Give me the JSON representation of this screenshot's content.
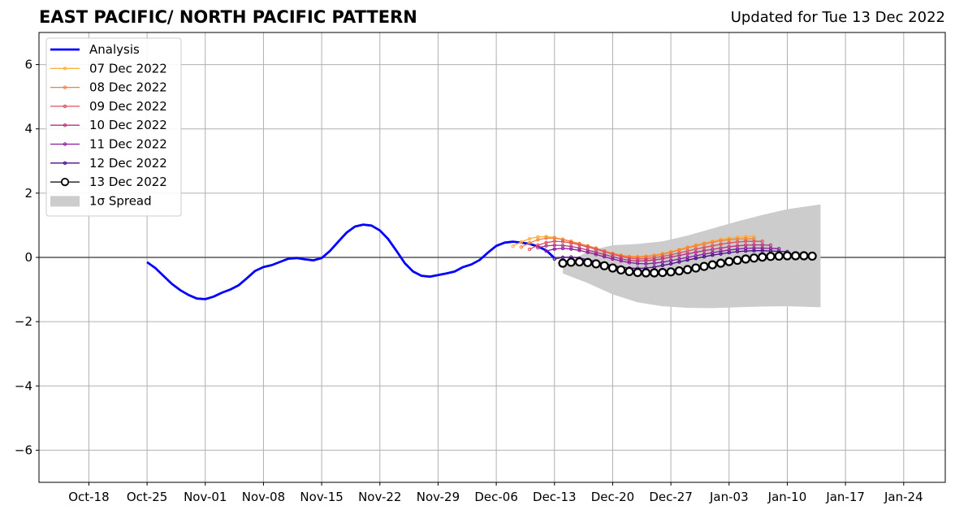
{
  "title": "EAST PACIFIC/ NORTH PACIFIC PATTERN",
  "updated": "Updated for Tue 13 Dec 2022",
  "chart_data": {
    "type": "line",
    "x_axis": {
      "unit": "days",
      "range": [
        "2022-10-12",
        "2023-01-29"
      ],
      "tick_dates": [
        "2022-10-18",
        "2022-10-25",
        "2022-11-01",
        "2022-11-08",
        "2022-11-15",
        "2022-11-22",
        "2022-11-29",
        "2022-12-06",
        "2022-12-13",
        "2022-12-20",
        "2022-12-27",
        "2023-01-03",
        "2023-01-10",
        "2023-01-17",
        "2023-01-24"
      ],
      "tick_labels": [
        "Oct-18",
        "Oct-25",
        "Nov-01",
        "Nov-08",
        "Nov-15",
        "Nov-22",
        "Nov-29",
        "Dec-06",
        "Dec-13",
        "Dec-20",
        "Dec-27",
        "Jan-03",
        "Jan-10",
        "Jan-17",
        "Jan-24"
      ]
    },
    "y_axis": {
      "range": [
        -7,
        7
      ],
      "ticks": [
        -6,
        -4,
        -2,
        0,
        2,
        4,
        6
      ],
      "tick_labels": [
        "−6",
        "−4",
        "−2",
        "0",
        "2",
        "4",
        "6"
      ]
    },
    "grid": true,
    "legend_position": "top-left",
    "spread": {
      "name": "1σ Spread",
      "color": "#cccccc",
      "upper": [
        {
          "x": "2022-12-14",
          "y": -0.3
        },
        {
          "x": "2022-12-17",
          "y": 0.2
        },
        {
          "x": "2022-12-20",
          "y": 0.38
        },
        {
          "x": "2022-12-23",
          "y": 0.42
        },
        {
          "x": "2022-12-26",
          "y": 0.5
        },
        {
          "x": "2022-12-29",
          "y": 0.68
        },
        {
          "x": "2023-01-01",
          "y": 0.9
        },
        {
          "x": "2023-01-04",
          "y": 1.12
        },
        {
          "x": "2023-01-07",
          "y": 1.32
        },
        {
          "x": "2023-01-10",
          "y": 1.5
        },
        {
          "x": "2023-01-14",
          "y": 1.65
        }
      ],
      "lower": [
        {
          "x": "2022-12-14",
          "y": -0.5
        },
        {
          "x": "2022-12-17",
          "y": -0.8
        },
        {
          "x": "2022-12-20",
          "y": -1.15
        },
        {
          "x": "2022-12-23",
          "y": -1.4
        },
        {
          "x": "2022-12-26",
          "y": -1.52
        },
        {
          "x": "2022-12-29",
          "y": -1.57
        },
        {
          "x": "2023-01-01",
          "y": -1.58
        },
        {
          "x": "2023-01-04",
          "y": -1.55
        },
        {
          "x": "2023-01-07",
          "y": -1.53
        },
        {
          "x": "2023-01-10",
          "y": -1.52
        },
        {
          "x": "2023-01-14",
          "y": -1.55
        }
      ]
    },
    "analysis": {
      "name": "Analysis",
      "color": "#0000ff",
      "points": [
        {
          "x": "2022-10-25",
          "y": -0.15
        },
        {
          "x": "2022-10-26",
          "y": -0.33
        },
        {
          "x": "2022-10-27",
          "y": -0.58
        },
        {
          "x": "2022-10-28",
          "y": -0.83
        },
        {
          "x": "2022-10-29",
          "y": -1.02
        },
        {
          "x": "2022-10-30",
          "y": -1.17
        },
        {
          "x": "2022-10-31",
          "y": -1.28
        },
        {
          "x": "2022-11-01",
          "y": -1.3
        },
        {
          "x": "2022-11-02",
          "y": -1.22
        },
        {
          "x": "2022-11-03",
          "y": -1.1
        },
        {
          "x": "2022-11-04",
          "y": -1.0
        },
        {
          "x": "2022-11-05",
          "y": -0.87
        },
        {
          "x": "2022-11-06",
          "y": -0.65
        },
        {
          "x": "2022-11-07",
          "y": -0.42
        },
        {
          "x": "2022-11-08",
          "y": -0.3
        },
        {
          "x": "2022-11-09",
          "y": -0.24
        },
        {
          "x": "2022-11-10",
          "y": -0.14
        },
        {
          "x": "2022-11-11",
          "y": -0.04
        },
        {
          "x": "2022-11-12",
          "y": -0.02
        },
        {
          "x": "2022-11-13",
          "y": -0.06
        },
        {
          "x": "2022-11-14",
          "y": -0.09
        },
        {
          "x": "2022-11-15",
          "y": -0.02
        },
        {
          "x": "2022-11-16",
          "y": 0.2
        },
        {
          "x": "2022-11-17",
          "y": 0.49
        },
        {
          "x": "2022-11-18",
          "y": 0.77
        },
        {
          "x": "2022-11-19",
          "y": 0.96
        },
        {
          "x": "2022-11-20",
          "y": 1.02
        },
        {
          "x": "2022-11-21",
          "y": 0.99
        },
        {
          "x": "2022-11-22",
          "y": 0.84
        },
        {
          "x": "2022-11-23",
          "y": 0.57
        },
        {
          "x": "2022-11-24",
          "y": 0.2
        },
        {
          "x": "2022-11-25",
          "y": -0.18
        },
        {
          "x": "2022-11-26",
          "y": -0.44
        },
        {
          "x": "2022-11-27",
          "y": -0.57
        },
        {
          "x": "2022-11-28",
          "y": -0.6
        },
        {
          "x": "2022-11-29",
          "y": -0.55
        },
        {
          "x": "2022-11-30",
          "y": -0.5
        },
        {
          "x": "2022-12-01",
          "y": -0.44
        },
        {
          "x": "2022-12-02",
          "y": -0.3
        },
        {
          "x": "2022-12-03",
          "y": -0.22
        },
        {
          "x": "2022-12-04",
          "y": -0.08
        },
        {
          "x": "2022-12-05",
          "y": 0.15
        },
        {
          "x": "2022-12-06",
          "y": 0.36
        },
        {
          "x": "2022-12-07",
          "y": 0.46
        },
        {
          "x": "2022-12-08",
          "y": 0.49
        },
        {
          "x": "2022-12-09",
          "y": 0.46
        },
        {
          "x": "2022-12-10",
          "y": 0.42
        },
        {
          "x": "2022-12-11",
          "y": 0.34
        },
        {
          "x": "2022-12-12",
          "y": 0.22
        },
        {
          "x": "2022-12-13",
          "y": -0.02
        }
      ]
    },
    "series": [
      {
        "name": "07 Dec 2022",
        "color": "#fbb13c",
        "start": "2022-12-08",
        "values": [
          0.35,
          0.48,
          0.58,
          0.64,
          0.65,
          0.62,
          0.56,
          0.48,
          0.42,
          0.35,
          0.28,
          0.2,
          0.12,
          0.07,
          0.04,
          0.03,
          0.05,
          0.07,
          0.12,
          0.18,
          0.25,
          0.32,
          0.39,
          0.45,
          0.51,
          0.56,
          0.6,
          0.63,
          0.65,
          0.65
        ]
      },
      {
        "name": "08 Dec 2022",
        "color": "#f37f3a",
        "start": "2022-12-09",
        "values": [
          0.32,
          0.45,
          0.55,
          0.6,
          0.6,
          0.56,
          0.5,
          0.43,
          0.36,
          0.29,
          0.2,
          0.12,
          0.06,
          0.02,
          0.01,
          0.02,
          0.05,
          0.1,
          0.16,
          0.23,
          0.3,
          0.36,
          0.42,
          0.47,
          0.52,
          0.55,
          0.57,
          0.58,
          0.58
        ]
      },
      {
        "name": "09 Dec 2022",
        "color": "#dc5060",
        "start": "2022-12-10",
        "values": [
          0.25,
          0.38,
          0.46,
          0.5,
          0.49,
          0.45,
          0.39,
          0.32,
          0.25,
          0.18,
          0.1,
          0.03,
          -0.02,
          -0.04,
          -0.04,
          -0.01,
          0.03,
          0.08,
          0.14,
          0.2,
          0.26,
          0.31,
          0.36,
          0.41,
          0.45,
          0.48,
          0.5,
          0.5,
          0.5
        ]
      },
      {
        "name": "10 Dec 2022",
        "color": "#b5327e",
        "start": "2022-12-11",
        "values": [
          0.3,
          0.36,
          0.38,
          0.37,
          0.34,
          0.29,
          0.23,
          0.16,
          0.09,
          0.02,
          -0.04,
          -0.09,
          -0.11,
          -0.1,
          -0.08,
          -0.04,
          0.01,
          0.06,
          0.11,
          0.16,
          0.21,
          0.25,
          0.29,
          0.33,
          0.36,
          0.38,
          0.39,
          0.39,
          0.38
        ]
      },
      {
        "name": "11 Dec 2022",
        "color": "#8a1a9b",
        "start": "2022-12-12",
        "values": [
          0.2,
          0.26,
          0.28,
          0.26,
          0.22,
          0.16,
          0.09,
          0.02,
          -0.05,
          -0.11,
          -0.16,
          -0.19,
          -0.2,
          -0.18,
          -0.15,
          -0.1,
          -0.05,
          0.0,
          0.05,
          0.1,
          0.15,
          0.19,
          0.23,
          0.26,
          0.28,
          0.29,
          0.29,
          0.28,
          0.27
        ]
      },
      {
        "name": "12 Dec 2022",
        "color": "#4b0c8a",
        "start": "2022-12-13",
        "values": [
          -0.05,
          0.0,
          0.01,
          -0.02,
          -0.07,
          -0.13,
          -0.19,
          -0.25,
          -0.3,
          -0.33,
          -0.34,
          -0.33,
          -0.3,
          -0.25,
          -0.2,
          -0.14,
          -0.08,
          -0.03,
          0.02,
          0.07,
          0.11,
          0.15,
          0.18,
          0.2,
          0.21,
          0.21,
          0.2,
          0.19,
          0.18
        ]
      },
      {
        "name": "13 Dec 2022",
        "color": "#000000",
        "start": "2022-12-14",
        "values": [
          -0.18,
          -0.15,
          -0.14,
          -0.16,
          -0.2,
          -0.26,
          -0.33,
          -0.39,
          -0.44,
          -0.47,
          -0.48,
          -0.48,
          -0.47,
          -0.45,
          -0.42,
          -0.38,
          -0.33,
          -0.28,
          -0.23,
          -0.18,
          -0.13,
          -0.09,
          -0.05,
          -0.02,
          0.01,
          0.03,
          0.04,
          0.05,
          0.05,
          0.05,
          0.04
        ]
      }
    ]
  }
}
